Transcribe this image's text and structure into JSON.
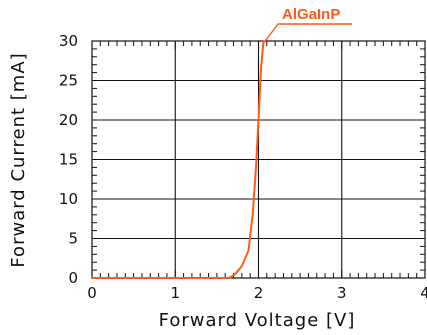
{
  "chart_data": {
    "type": "line",
    "xlabel": "Forward Voltage [V]",
    "ylabel": "Forward Current [mA]",
    "xlim": [
      0,
      4
    ],
    "ylim": [
      0,
      30
    ],
    "x_ticks": [
      0,
      1,
      2,
      3,
      4
    ],
    "y_ticks": [
      0,
      5,
      10,
      15,
      20,
      25,
      30
    ],
    "x_tick_labels": [
      "0",
      "1",
      "2",
      "3",
      "4"
    ],
    "y_tick_labels": [
      "0",
      "5",
      "10",
      "15",
      "20",
      "25",
      "30"
    ],
    "grid": true,
    "series": [
      {
        "name": "AlGaInP",
        "color": "#ff5a14",
        "x": [
          0.0,
          1.5,
          1.65,
          1.72,
          1.8,
          1.88,
          1.93,
          1.97,
          2.0,
          2.03,
          2.06
        ],
        "y": [
          0.0,
          0.0,
          0.0,
          0.5,
          1.5,
          3.5,
          8.0,
          14.0,
          20.0,
          26.5,
          30.0
        ]
      }
    ],
    "annotation": {
      "text": "AlGaInP",
      "series": "AlGaInP"
    }
  }
}
